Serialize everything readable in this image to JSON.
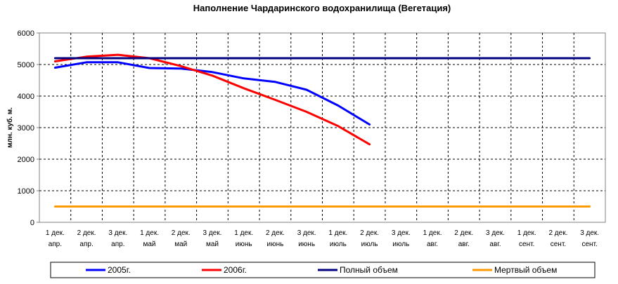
{
  "chart_data": {
    "type": "line",
    "title": "Наполнение Чардаринского водохранилища (Вегетация)",
    "xlabel": "",
    "ylabel": "млн. куб. м.",
    "ylim": [
      0,
      6000
    ],
    "yticks": [
      0,
      1000,
      2000,
      3000,
      4000,
      5000,
      6000
    ],
    "grid": true,
    "legend_position": "bottom",
    "categories": [
      [
        "1 дек.",
        "апр."
      ],
      [
        "2 дек.",
        "апр."
      ],
      [
        "3 дек.",
        "апр."
      ],
      [
        "1 дек.",
        "май"
      ],
      [
        "2 дек.",
        "май"
      ],
      [
        "3 дек.",
        "май"
      ],
      [
        "1 дек.",
        "июнь"
      ],
      [
        "2 дек.",
        "июнь"
      ],
      [
        "3 дек.",
        "июнь"
      ],
      [
        "1 дек.",
        "июль"
      ],
      [
        "2 дек.",
        "июль"
      ],
      [
        "3 дек.",
        "июль"
      ],
      [
        "1 дек.",
        "авг."
      ],
      [
        "2 дек.",
        "авг."
      ],
      [
        "3 дек.",
        "авг."
      ],
      [
        "1 дек.",
        "сент."
      ],
      [
        "2 дек.",
        "сент."
      ],
      [
        "3 дек.",
        "сент."
      ]
    ],
    "series": [
      {
        "name": "2005г.",
        "color": "#0000ff",
        "values": [
          4900,
          5070,
          5070,
          4890,
          4870,
          4760,
          4560,
          4450,
          4200,
          3700,
          3100,
          null,
          null,
          null,
          null,
          null,
          null,
          null
        ]
      },
      {
        "name": "2006г.",
        "color": "#ff0000",
        "values": [
          5100,
          5250,
          5310,
          5200,
          4950,
          4650,
          4250,
          3880,
          3500,
          3050,
          2470,
          null,
          null,
          null,
          null,
          null,
          null,
          null
        ]
      },
      {
        "name": "Полный объем",
        "color": "#000080",
        "values": [
          5200,
          5200,
          5200,
          5200,
          5200,
          5200,
          5200,
          5200,
          5200,
          5200,
          5200,
          5200,
          5200,
          5200,
          5200,
          5200,
          5200,
          5200
        ]
      },
      {
        "name": "Мертвый объем",
        "color": "#ff9900",
        "values": [
          500,
          500,
          500,
          500,
          500,
          500,
          500,
          500,
          500,
          500,
          500,
          500,
          500,
          500,
          500,
          500,
          500,
          500
        ]
      }
    ]
  }
}
